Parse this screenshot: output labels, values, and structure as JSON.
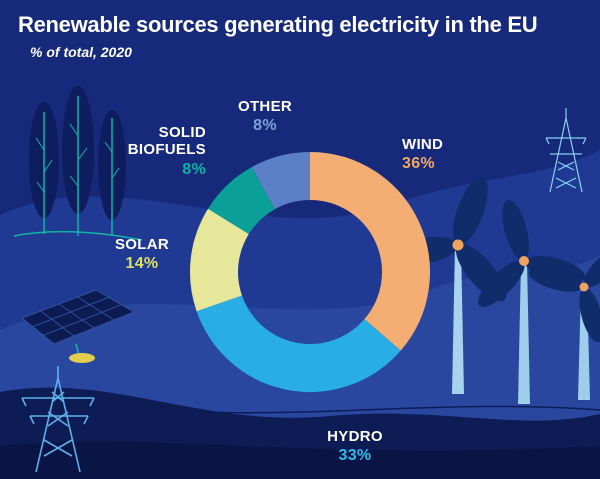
{
  "header": {
    "title": "Renewable sources generating electricity in the EU",
    "subtitle": "% of total, 2020"
  },
  "chart_data": {
    "type": "pie",
    "donut": true,
    "title": "Renewable sources generating electricity in the EU",
    "subtitle": "% of total, 2020",
    "unit": "%",
    "start_angle_deg": -90,
    "direction": "clockwise",
    "legend_position": "around-chart",
    "slices": [
      {
        "label": "WIND",
        "value": 36,
        "pct_label": "36%",
        "color": "#f4ad72",
        "label_color": "#f2a860"
      },
      {
        "label": "HYDRO",
        "value": 33,
        "pct_label": "33%",
        "color": "#28ade4",
        "label_color": "#2fbcec"
      },
      {
        "label": "SOLAR",
        "value": 14,
        "pct_label": "14%",
        "color": "#e6e79a",
        "label_color": "#dce060"
      },
      {
        "label": "SOLID BIOFUELS",
        "value": 8,
        "pct_label": "8%",
        "color": "#0a9f97",
        "label_color": "#12b2a6"
      },
      {
        "label": "OTHER",
        "value": 8,
        "pct_label": "8%",
        "color": "#5b80c8",
        "label_color": "#7fa0da"
      }
    ]
  },
  "colors": {
    "background_top": "#16297b",
    "background_mid": "#203a94",
    "background_swoosh": "#2a479f",
    "background_bottom": "#0d1c55",
    "background_deepest": "#0a1545",
    "illustration_dark": "#0d1d5e",
    "illustration_teal": "#14b3a6",
    "illustration_lightblue": "#5fb0ea",
    "turbine_pole": "#a6d3ee",
    "turbine_hub": "#f0a35c",
    "title_text": "#ffffff"
  },
  "illustrations": [
    "trees-icon",
    "solar-panel-icon",
    "pylon-left-icon",
    "pylon-right-icon",
    "wind-turbines-icon"
  ]
}
